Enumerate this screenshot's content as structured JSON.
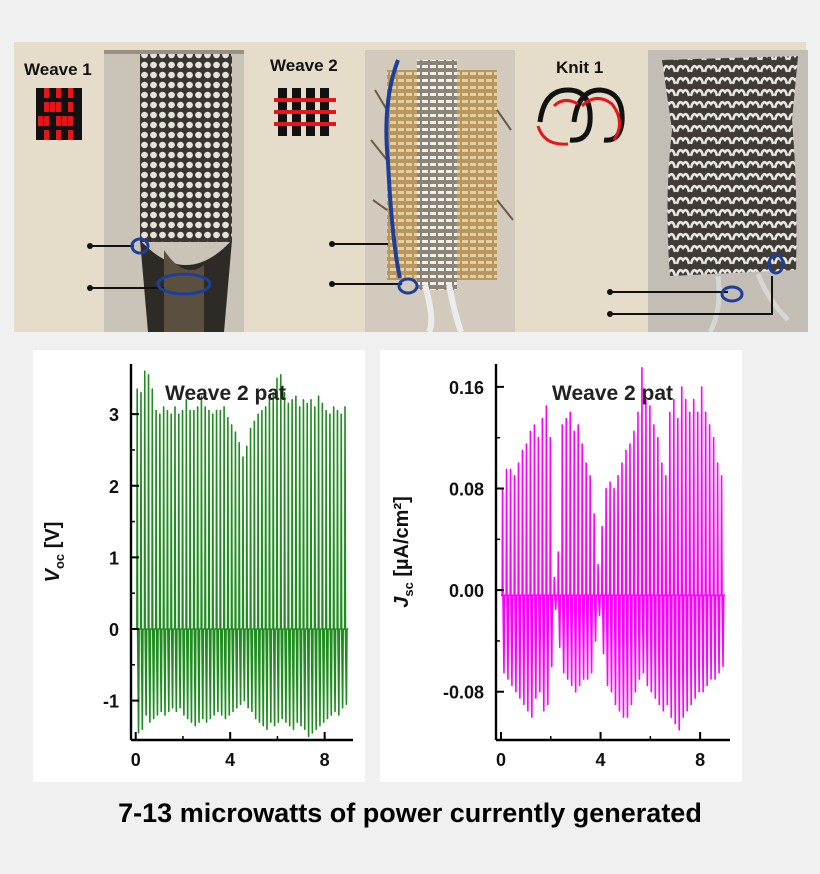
{
  "samples": [
    {
      "label": "Weave 1",
      "pattern": "plain-weave-icon",
      "photo": "woven-textile-sample-photo"
    },
    {
      "label": "Weave 2",
      "pattern": "basket-weave-icon",
      "photo": "woven-textile-sample-photo"
    },
    {
      "label": "Knit 1",
      "pattern": "interlocking-loops-icon",
      "photo": "knitted-textile-sample-photo"
    }
  ],
  "colors": {
    "voc_trace": "#1e8c1e",
    "jsc_trace": "#ff00ff",
    "background": "#f1f0f0",
    "photo_strip": "#e5ddc9",
    "icon_red": "#e4161c",
    "electrode_blue": "#1d3f9a"
  },
  "caption": "7-13 microwatts of power currently generated",
  "chart_data": [
    {
      "type": "line",
      "title": "Weave 2 pat",
      "ylabel_main": "V",
      "ylabel_sub": "oc",
      "ylabel_unit": "[V]",
      "xlabel": "",
      "xlim": [
        -0.2,
        9.2
      ],
      "ylim": [
        -1.55,
        3.7
      ],
      "xticks": [
        "0",
        "4",
        "8"
      ],
      "xtick_values": [
        0,
        4,
        8
      ],
      "yticks": [
        "-1",
        "0",
        "1",
        "2",
        "3"
      ],
      "ytick_values": [
        -1,
        0,
        1,
        2,
        3
      ],
      "pulse_interval": 0.16,
      "x_start": 0,
      "x_end": 9,
      "baseline": 0,
      "series": [
        {
          "name": "Voc",
          "peaks": [
            3.35,
            3.3,
            3.6,
            3.55,
            3.35,
            3.05,
            3.0,
            3.1,
            3.05,
            3.0,
            3.1,
            3.0,
            3.05,
            3.2,
            3.05,
            3.05,
            3.1,
            3.25,
            3.1,
            3.05,
            3.0,
            3.05,
            3.05,
            3.1,
            2.95,
            2.85,
            2.75,
            2.6,
            2.4,
            2.55,
            2.8,
            2.9,
            3.0,
            3.05,
            3.1,
            3.2,
            3.3,
            3.5,
            3.55,
            3.3,
            3.15,
            3.2,
            3.25,
            3.1,
            3.2,
            3.15,
            3.2,
            3.1,
            3.25,
            3.15,
            3.05,
            3.0,
            3.1,
            3.05,
            3.0,
            3.1
          ],
          "troughs": [
            -1.45,
            -1.4,
            -1.2,
            -1.3,
            -1.25,
            -1.2,
            -1.15,
            -1.2,
            -1.15,
            -1.1,
            -1.15,
            -1.1,
            -1.2,
            -1.25,
            -1.3,
            -1.35,
            -1.3,
            -1.25,
            -1.3,
            -1.25,
            -1.2,
            -1.15,
            -1.2,
            -1.25,
            -1.2,
            -1.15,
            -1.1,
            -1.05,
            -1.0,
            -1.1,
            -1.15,
            -1.25,
            -1.3,
            -1.35,
            -1.4,
            -1.3,
            -1.35,
            -1.3,
            -1.25,
            -1.3,
            -1.35,
            -1.4,
            -1.3,
            -1.35,
            -1.4,
            -1.5,
            -1.45,
            -1.4,
            -1.35,
            -1.3,
            -1.25,
            -1.2,
            -1.15,
            -1.2,
            -1.1,
            -1.05
          ]
        }
      ]
    },
    {
      "type": "line",
      "title": "Weave 2 pat",
      "ylabel_main": "J",
      "ylabel_sub": "sc",
      "ylabel_unit": "[µA/cm²]",
      "xlabel": "",
      "xlim": [
        -0.2,
        9.2
      ],
      "ylim": [
        -0.118,
        0.178
      ],
      "xticks": [
        "0",
        "4",
        "8"
      ],
      "xtick_values": [
        0,
        4,
        8
      ],
      "yticks": [
        "-0.08",
        "0.00",
        "0.08",
        "0.16"
      ],
      "ytick_values": [
        -0.08,
        0.0,
        0.08,
        0.16
      ],
      "pulse_interval": 0.16,
      "x_start": 0,
      "x_end": 9,
      "baseline": -0.004,
      "series": [
        {
          "name": "Jsc",
          "peaks": [
            0.08,
            0.095,
            0.095,
            0.09,
            0.1,
            0.11,
            0.115,
            0.125,
            0.13,
            0.12,
            0.135,
            0.145,
            0.12,
            0.01,
            0.03,
            0.13,
            0.135,
            0.14,
            0.125,
            0.13,
            0.115,
            0.1,
            0.09,
            0.06,
            0.02,
            0.05,
            0.08,
            0.085,
            0.08,
            0.09,
            0.1,
            0.11,
            0.115,
            0.125,
            0.14,
            0.175,
            0.15,
            0.145,
            0.13,
            0.12,
            0.1,
            0.09,
            0.14,
            0.15,
            0.135,
            0.16,
            0.15,
            0.14,
            0.15,
            0.14,
            0.16,
            0.14,
            0.13,
            0.12,
            0.1,
            0.09
          ],
          "troughs": [
            -0.065,
            -0.07,
            -0.075,
            -0.08,
            -0.085,
            -0.09,
            -0.095,
            -0.1,
            -0.085,
            -0.08,
            -0.095,
            -0.09,
            -0.06,
            -0.015,
            -0.045,
            -0.065,
            -0.07,
            -0.075,
            -0.08,
            -0.075,
            -0.07,
            -0.07,
            -0.065,
            -0.04,
            -0.02,
            -0.05,
            -0.075,
            -0.08,
            -0.09,
            -0.095,
            -0.1,
            -0.1,
            -0.09,
            -0.08,
            -0.07,
            -0.065,
            -0.075,
            -0.08,
            -0.085,
            -0.09,
            -0.095,
            -0.09,
            -0.1,
            -0.105,
            -0.11,
            -0.1,
            -0.095,
            -0.09,
            -0.085,
            -0.08,
            -0.08,
            -0.075,
            -0.07,
            -0.07,
            -0.065,
            -0.06
          ]
        }
      ]
    }
  ]
}
